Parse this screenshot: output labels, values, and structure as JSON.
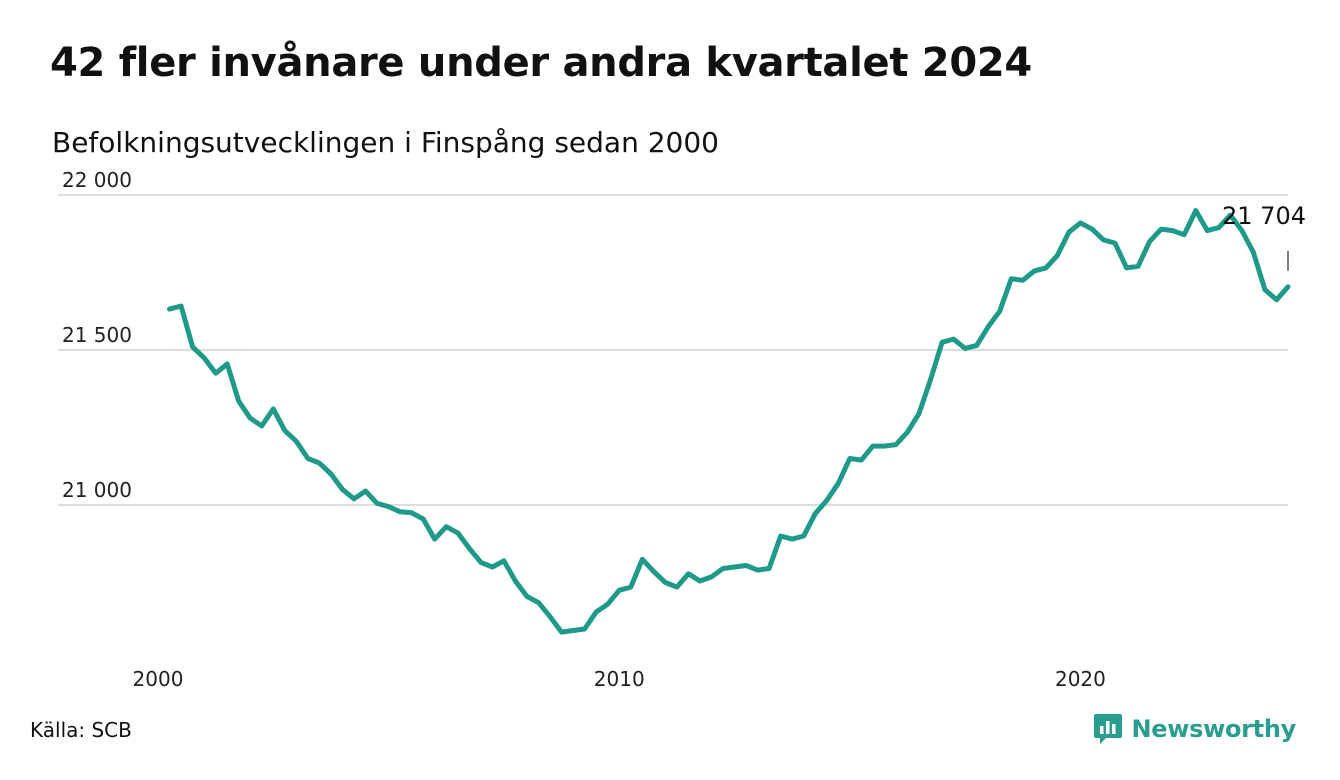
{
  "title": "42 fler invånare under andra kvartalet 2024",
  "subtitle": "Befolkningsutvecklingen i Finspång sedan 2000",
  "source": "Källa: SCB",
  "brand": {
    "name": "Newsworthy",
    "color": "#2a9d8f",
    "icon": "newsworthy-chart-bubble-icon"
  },
  "chart_data": {
    "type": "line",
    "xlabel": "",
    "ylabel": "",
    "xlim": [
      2000,
      2024.5
    ],
    "ylim": [
      20580,
      22000
    ],
    "x_ticks": [
      2000,
      2010,
      2020
    ],
    "x_tick_labels": [
      "2000",
      "2010",
      "2020"
    ],
    "y_ticks": [
      21000,
      21500,
      22000
    ],
    "y_tick_labels": [
      "21 000",
      "21 500",
      "22 000"
    ],
    "grid": "horizontal",
    "line_color": "#1f9a8a",
    "end_label": "21 704",
    "series": [
      {
        "x_start": 2000.25,
        "x_step": 0.25,
        "values": [
          21632,
          21642,
          21510,
          21475,
          21425,
          21455,
          21335,
          21280,
          21255,
          21310,
          21240,
          21205,
          21150,
          21135,
          21100,
          21050,
          21020,
          21045,
          21005,
          20995,
          20978,
          20975,
          20955,
          20890,
          20930,
          20910,
          20860,
          20815,
          20800,
          20820,
          20755,
          20705,
          20685,
          20640,
          20590,
          20595,
          20600,
          20655,
          20680,
          20725,
          20735,
          20825,
          20785,
          20750,
          20735,
          20778,
          20755,
          20768,
          20795,
          20800,
          20805,
          20790,
          20795,
          20900,
          20890,
          20900,
          20972,
          21015,
          21070,
          21150,
          21145,
          21190,
          21190,
          21195,
          21235,
          21295,
          21405,
          21525,
          21535,
          21505,
          21515,
          21575,
          21625,
          21730,
          21725,
          21755,
          21765,
          21805,
          21880,
          21910,
          21890,
          21855,
          21845,
          21765,
          21770,
          21850,
          21890,
          21885,
          21872,
          21950,
          21885,
          21895,
          21935,
          21885,
          21815,
          21695,
          21662,
          21704
        ]
      }
    ]
  }
}
